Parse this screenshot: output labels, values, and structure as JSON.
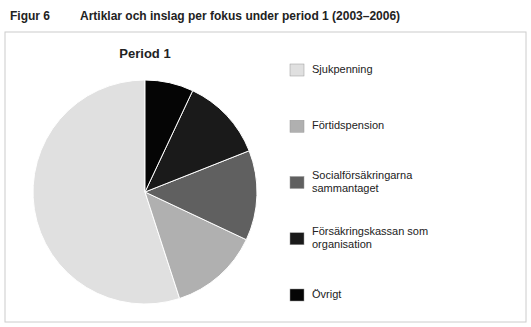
{
  "chart_data": {
    "type": "pie",
    "title": "Period 1",
    "subtitle": "Artiklar och inslag per fokus under period 1 (2003–2006)",
    "annotations": [
      "Figur 6"
    ],
    "categories": [
      "Sjukpenning",
      "Förtidspension",
      "Socialförsäkringarna\nsammantaget",
      "Försäkringskassan som\norganisation",
      "Övrigt"
    ],
    "values": [
      55,
      13,
      13,
      12,
      7
    ],
    "colors": [
      "#e0e0e0",
      "#b0b0b0",
      "#606060",
      "#1a1a1a",
      "#050505"
    ],
    "legend": "right"
  }
}
